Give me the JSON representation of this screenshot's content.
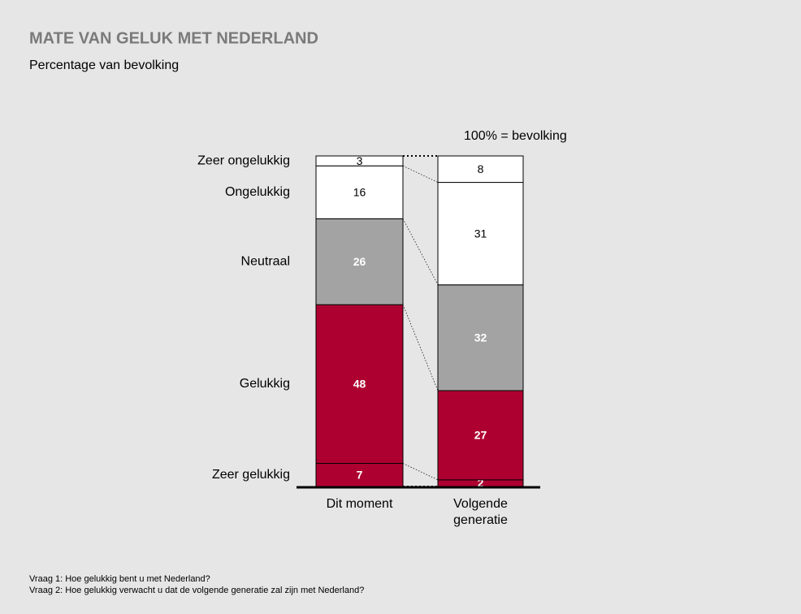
{
  "chart_data": {
    "type": "stacked_bar",
    "title": "MATE VAN GELUK MET NEDERLAND",
    "subtitle": "Percentage van bevolking",
    "annotation": "100% = bevolking",
    "categories": [
      "Dit moment",
      "Volgende generatie"
    ],
    "series": [
      {
        "name": "Zeer gelukkig",
        "color": "#ae0030",
        "label_color": "#ffffff",
        "values": [
          7,
          2
        ]
      },
      {
        "name": "Gelukkig",
        "color": "#ae0030",
        "label_color": "#ffffff",
        "values": [
          48,
          27
        ]
      },
      {
        "name": "Neutraal",
        "color": "#a3a3a3",
        "label_color": "#ffffff",
        "values": [
          26,
          32
        ]
      },
      {
        "name": "Ongelukkig",
        "color": "#ffffff",
        "label_color": "#000000",
        "values": [
          16,
          31
        ]
      },
      {
        "name": "Zeer ongelukkig",
        "color": "#ffffff",
        "label_color": "#000000",
        "values": [
          3,
          8
        ]
      }
    ],
    "notes": [
      "Vraag 1: Hoe gelukkig bent u met Nederland?",
      "Vraag 2: Hoe gelukkig verwacht u dat de volgende generatie zal zijn met Nederland?"
    ]
  }
}
